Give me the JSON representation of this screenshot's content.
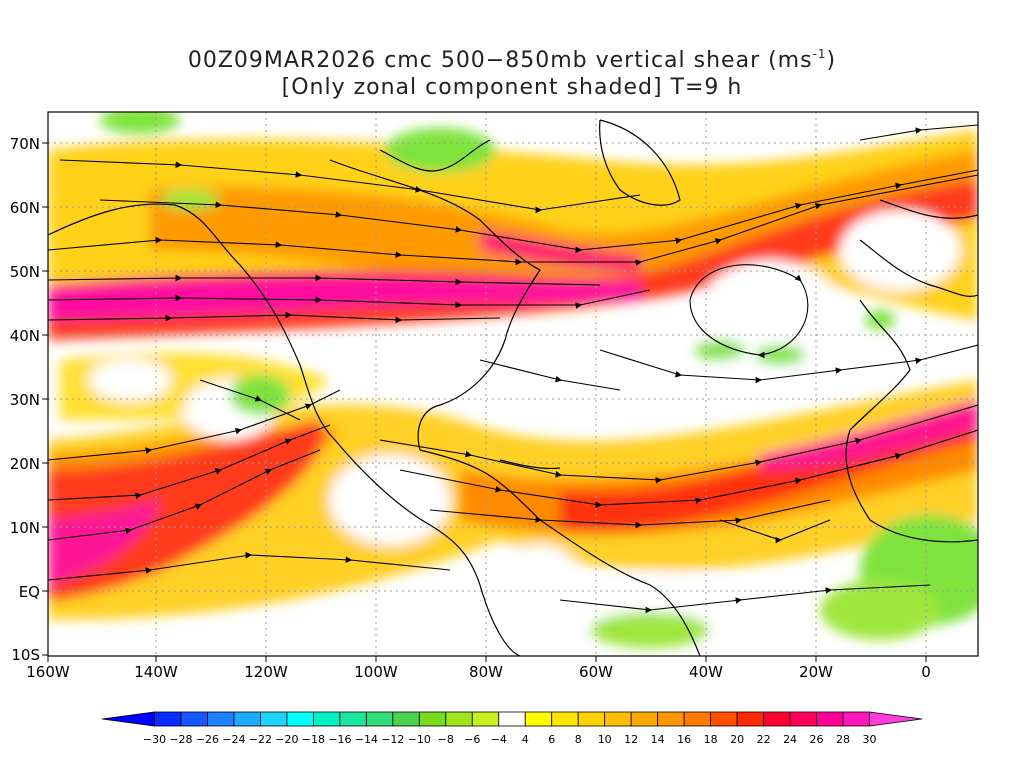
{
  "title": {
    "line1": "00Z09MAR2026 cmc 500−850mb vertical shear (ms",
    "line1_exp": "-1",
    "line1_end": ")",
    "line2": "[Only zonal component shaded] T=9 h"
  },
  "axes": {
    "lat_labels": [
      "70N",
      "60N",
      "50N",
      "40N",
      "30N",
      "20N",
      "10N",
      "EQ",
      "10S"
    ],
    "lon_labels": [
      "160W",
      "140W",
      "120W",
      "100W",
      "80W",
      "60W",
      "40W",
      "20W",
      "0"
    ]
  },
  "colorbar": {
    "labels": [
      "−30",
      "−28",
      "−26",
      "−24",
      "−22",
      "−20",
      "−18",
      "−16",
      "−14",
      "−12",
      "−10",
      "−8",
      "−6",
      "−4",
      "4",
      "6",
      "8",
      "10",
      "12",
      "14",
      "16",
      "18",
      "20",
      "22",
      "24",
      "26",
      "28",
      "30"
    ],
    "colors": [
      "#0000ff",
      "#0a2cff",
      "#1456ff",
      "#1e7fff",
      "#1eaaff",
      "#1ed4ff",
      "#00ffff",
      "#00f0c8",
      "#1ee6a0",
      "#32dc78",
      "#4bd250",
      "#78dc1e",
      "#a0e61e",
      "#c8f01e",
      "#ffffff",
      "#ffff00",
      "#ffe600",
      "#ffd200",
      "#ffbe00",
      "#ffaa00",
      "#ff9600",
      "#ff7800",
      "#ff5000",
      "#ff2800",
      "#ff0032",
      "#ff005a",
      "#ff0096",
      "#ff14be",
      "#ff3cdc"
    ]
  },
  "colors": {
    "low_shear_green": "#7fe33c",
    "strong_magenta": "#ff0fa0",
    "jet_red": "#ff3a1a",
    "orange": "#ff9a00",
    "yellow": "#ffd800",
    "streamline": "#000000",
    "coastline": "#000000",
    "grid": "#9a9a9a"
  }
}
